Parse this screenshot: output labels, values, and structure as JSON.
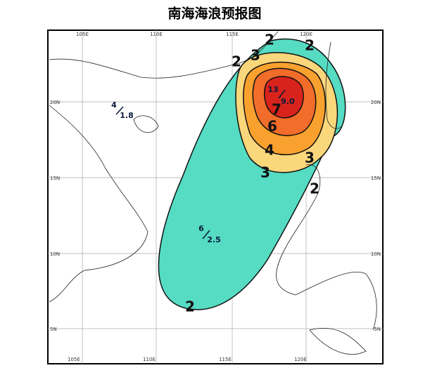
{
  "title": "南海海浪预报图",
  "lon_labels": [
    "105E",
    "110E",
    "115E",
    "120E"
  ],
  "lat_labels": [
    "20N",
    "15N",
    "10N",
    "5N"
  ],
  "contour_labels": [
    "2",
    "2",
    "2",
    "2",
    "2",
    "3",
    "3",
    "3",
    "4",
    "6",
    "7"
  ],
  "markers": [
    {
      "wind": "4",
      "wave": "1.8"
    },
    {
      "wind": "6",
      "wave": "2.5"
    },
    {
      "wind": "13",
      "wave": "9.0"
    }
  ]
}
